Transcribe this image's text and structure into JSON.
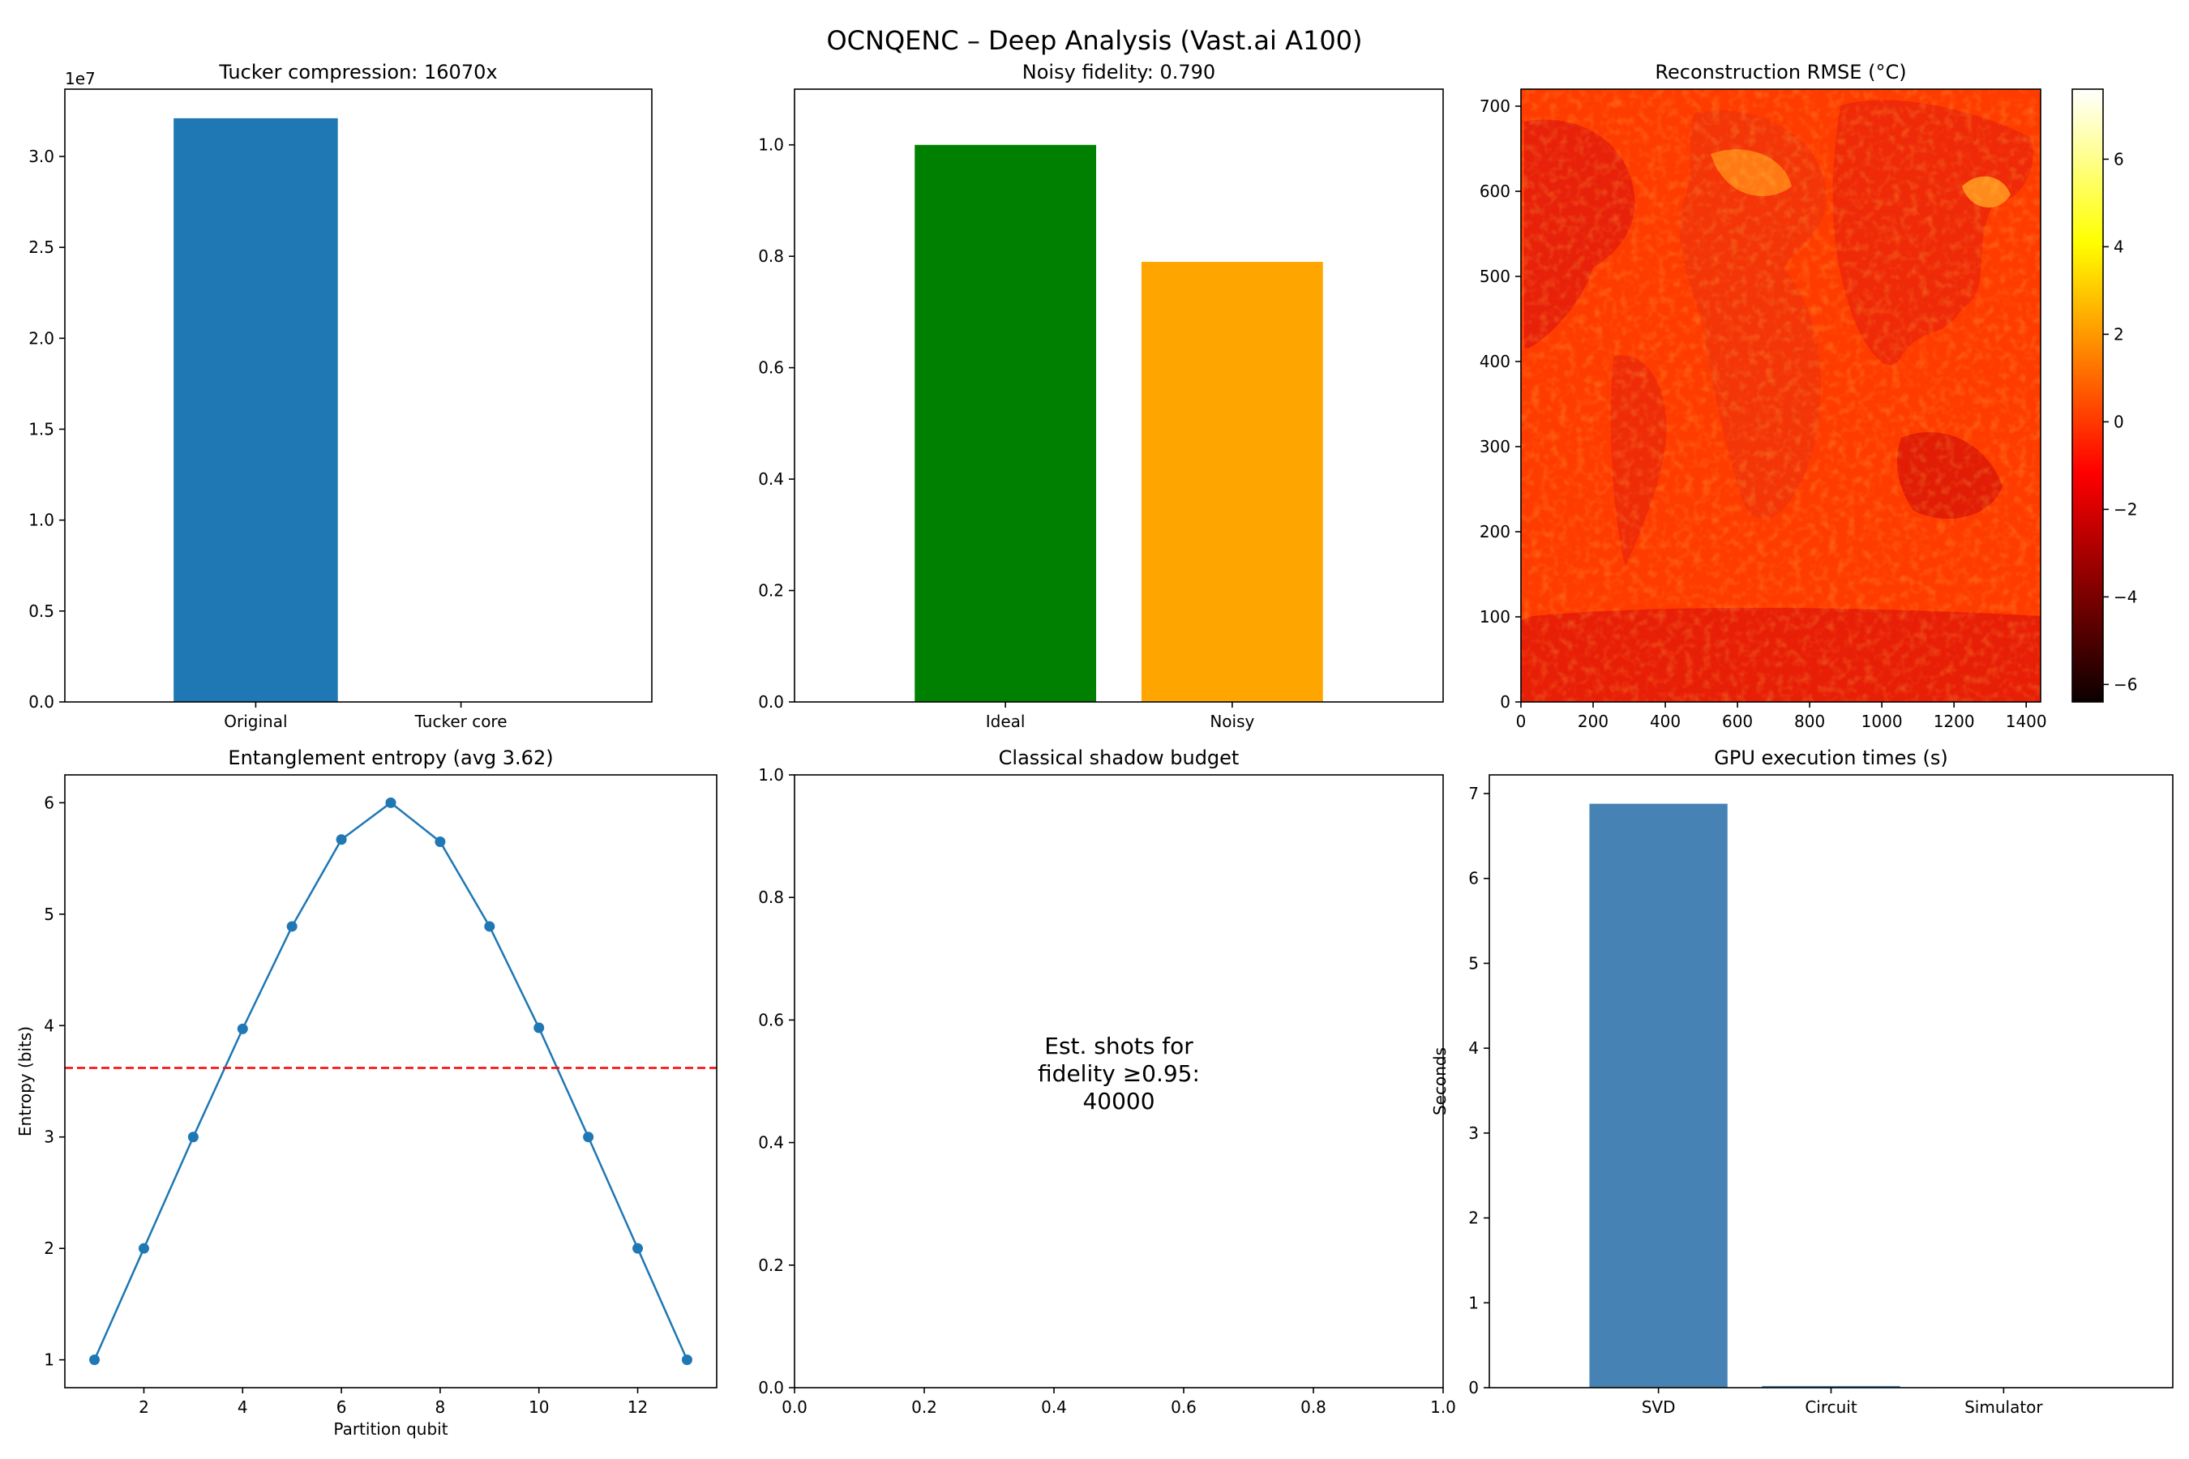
{
  "figure": {
    "title": "OCNQENC – Deep Analysis (Vast.ai A100)"
  },
  "chart_data": [
    {
      "id": "tucker",
      "type": "bar",
      "title": "Tucker compression: 16070x",
      "categories": [
        "Original",
        "Tucker core"
      ],
      "values": [
        32100000,
        2000
      ],
      "colors": [
        "#1f77b4",
        "#1f77b4"
      ],
      "ylim": [
        0,
        33700000
      ],
      "yticks": [
        0,
        5000000,
        10000000,
        15000000,
        20000000,
        25000000,
        30000000
      ],
      "ytick_labels": [
        "0.0",
        "0.5",
        "1.0",
        "1.5",
        "2.0",
        "2.5",
        "3.0"
      ],
      "offset_label": "1e7",
      "xlabel": "",
      "ylabel": ""
    },
    {
      "id": "fidelity",
      "type": "bar",
      "title": "Noisy fidelity: 0.790",
      "categories": [
        "Ideal",
        "Noisy"
      ],
      "values": [
        1.0,
        0.79
      ],
      "colors": [
        "#008000",
        "#ffa500"
      ],
      "ylim": [
        0,
        1.1
      ],
      "yticks": [
        0,
        0.2,
        0.4,
        0.6,
        0.8,
        1.0
      ],
      "ytick_labels": [
        "0.0",
        "0.2",
        "0.4",
        "0.6",
        "0.8",
        "1.0"
      ],
      "xlabel": "",
      "ylabel": ""
    },
    {
      "id": "rmse",
      "type": "heatmap",
      "title": "Reconstruction RMSE (°C)",
      "colormap": "hot",
      "xlim": [
        0,
        1440
      ],
      "ylim": [
        0,
        720
      ],
      "xticks": [
        0,
        200,
        400,
        600,
        800,
        1000,
        1200,
        1400
      ],
      "yticks": [
        0,
        100,
        200,
        300,
        400,
        500,
        600,
        700
      ],
      "colorbar": {
        "range": [
          -6.4,
          7.6
        ],
        "ticks": [
          -6,
          -4,
          -2,
          0,
          2,
          4,
          6
        ],
        "tick_labels": [
          "−6",
          "−4",
          "−2",
          "0",
          "2",
          "4",
          "6"
        ]
      },
      "colors": {
        "background": "#ff3c00",
        "land_low": "#e61e00",
        "land_high": "#ff8c1a"
      }
    },
    {
      "id": "entropy",
      "type": "line",
      "title": "Entanglement entropy (avg 3.62)",
      "x": [
        1,
        2,
        3,
        4,
        5,
        6,
        7,
        8,
        9,
        10,
        11,
        12,
        13
      ],
      "y": [
        1.0,
        2.0,
        3.0,
        3.97,
        4.89,
        5.67,
        6.0,
        5.65,
        4.89,
        3.98,
        3.0,
        2.0,
        1.0
      ],
      "average": 3.62,
      "xlim": [
        0.4,
        13.6
      ],
      "ylim": [
        0.75,
        6.25
      ],
      "xticks": [
        2,
        4,
        6,
        8,
        10,
        12
      ],
      "yticks": [
        1,
        2,
        3,
        4,
        5,
        6
      ],
      "xlabel": "Partition qubit",
      "ylabel": "Entropy (bits)",
      "colors": {
        "line": "#1f77b4",
        "average": "#ff0000"
      }
    },
    {
      "id": "shadow",
      "type": "text",
      "title": "Classical shadow budget",
      "annotation": [
        "Est. shots for",
        "fidelity ≥0.95:",
        "40000"
      ],
      "xlim": [
        0,
        1
      ],
      "ylim": [
        0,
        1
      ],
      "xticks": [
        0,
        0.2,
        0.4,
        0.6,
        0.8,
        1.0
      ],
      "yticks": [
        0,
        0.2,
        0.4,
        0.6,
        0.8,
        1.0
      ],
      "xtick_labels": [
        "0.0",
        "0.2",
        "0.4",
        "0.6",
        "0.8",
        "1.0"
      ],
      "ytick_labels": [
        "0.0",
        "0.2",
        "0.4",
        "0.6",
        "0.8",
        "1.0"
      ]
    },
    {
      "id": "gpu",
      "type": "bar",
      "title": "GPU execution times (s)",
      "categories": [
        "SVD",
        "Circuit",
        "Simulator"
      ],
      "values": [
        6.88,
        0.02,
        0.005
      ],
      "colors": [
        "#4682b4",
        "#4682b4",
        "#4682b4"
      ],
      "ylim": [
        0,
        7.22
      ],
      "yticks": [
        0,
        1,
        2,
        3,
        4,
        5,
        6,
        7
      ],
      "ytick_labels": [
        "0",
        "1",
        "2",
        "3",
        "4",
        "5",
        "6",
        "7"
      ],
      "xlabel": "",
      "ylabel": "Seconds"
    }
  ]
}
